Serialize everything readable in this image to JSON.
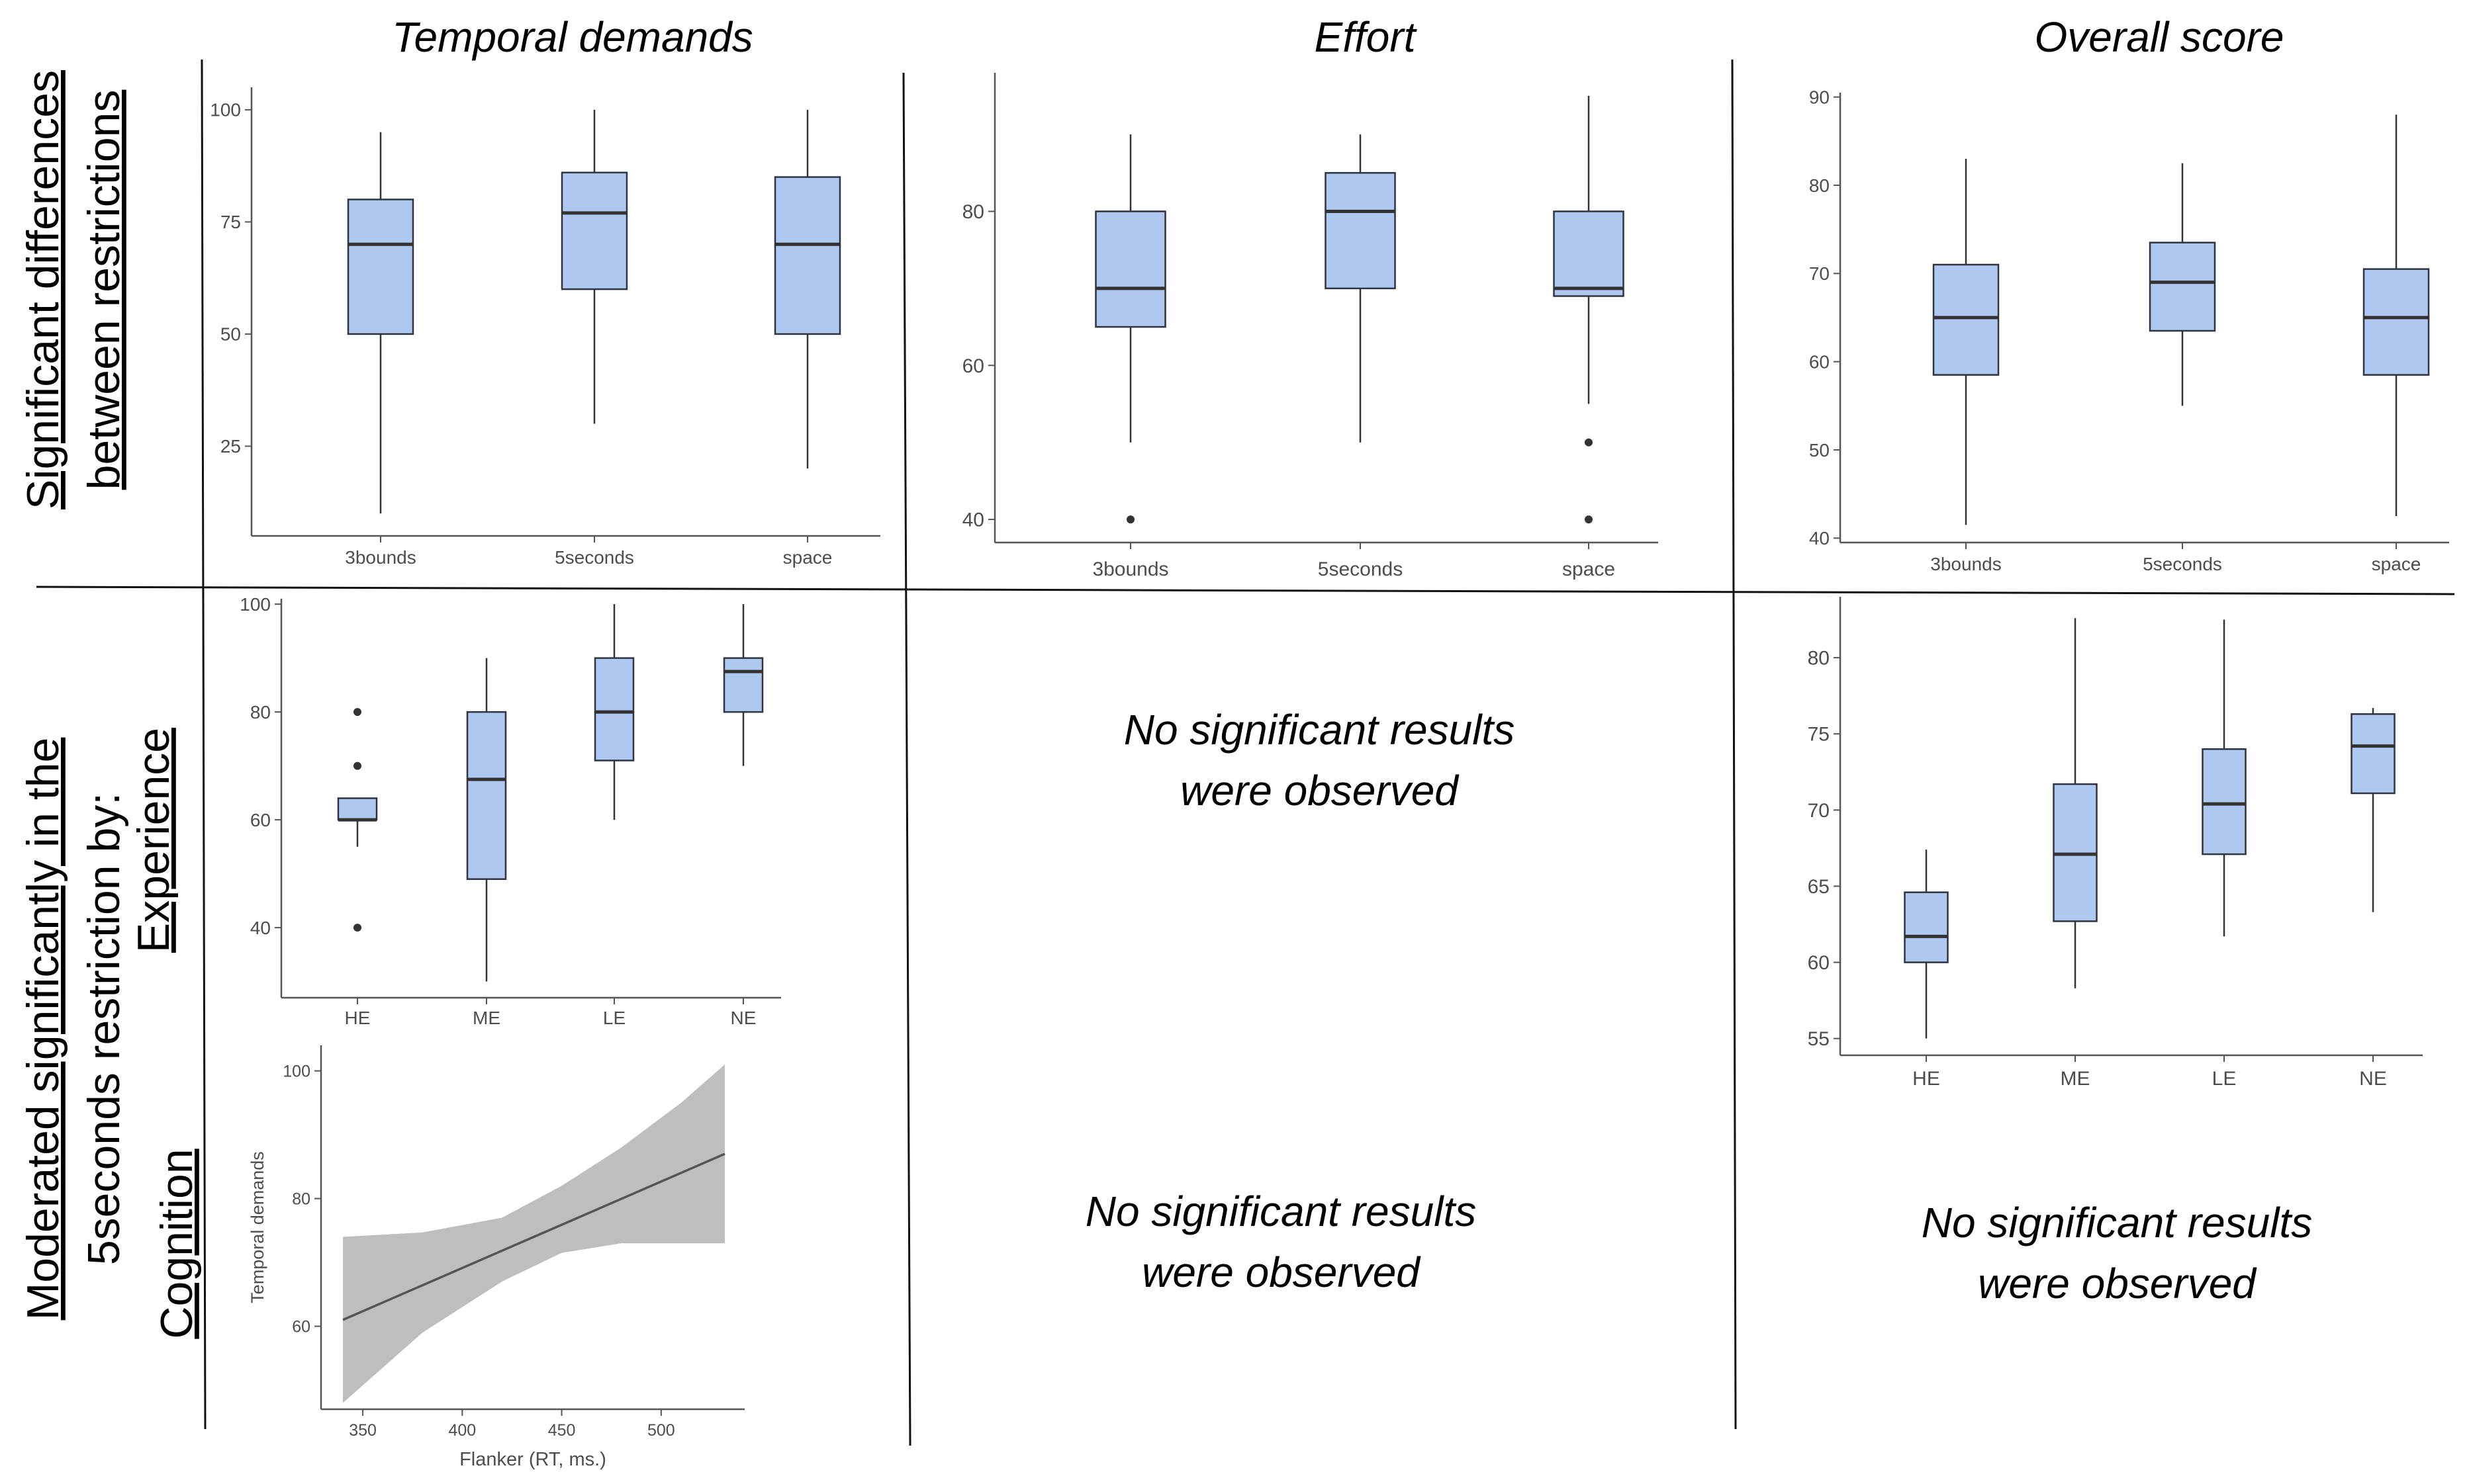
{
  "columns": {
    "temporal": "Temporal demands",
    "effort": "Effort",
    "overall": "Overall score"
  },
  "rows": {
    "top": [
      "Significant differences",
      "between restrictions"
    ],
    "bottom_main": [
      "Moderated significantly in the",
      "5seconds restriction by:"
    ],
    "experience": "Experience",
    "cognition": "Cognition"
  },
  "no_results": [
    "No significant results",
    "were observed"
  ],
  "colors": {
    "box_fill": "#aec8f0",
    "box_stroke": "#2e3440",
    "median": "#333333",
    "ribbon": "#bebebe",
    "line": "#555555",
    "axis": "#555555",
    "tick_text": "#4d4d4d",
    "divider": "#111111"
  },
  "chart_data": [
    {
      "id": "temporal_restriction",
      "type": "boxplot",
      "title": "Temporal demands",
      "categories": [
        "3bounds",
        "5seconds",
        "space"
      ],
      "boxes": [
        {
          "q1": 50,
          "median": 70,
          "q3": 80,
          "low": 10,
          "high": 95,
          "outliers": []
        },
        {
          "q1": 60,
          "median": 77,
          "q3": 86,
          "low": 30,
          "high": 100,
          "outliers": []
        },
        {
          "q1": 50,
          "median": 70,
          "q3": 85,
          "low": 20,
          "high": 100,
          "outliers": []
        }
      ],
      "yticks": [
        25,
        50,
        75,
        100
      ],
      "ylim": [
        5,
        105
      ]
    },
    {
      "id": "effort_restriction",
      "type": "boxplot",
      "title": "Effort",
      "categories": [
        "3bounds",
        "5seconds",
        "space"
      ],
      "boxes": [
        {
          "q1": 65,
          "median": 70,
          "q3": 80,
          "low": 50,
          "high": 90,
          "outliers": [
            40
          ]
        },
        {
          "q1": 70,
          "median": 80,
          "q3": 85,
          "low": 50,
          "high": 90,
          "outliers": []
        },
        {
          "q1": 69,
          "median": 70,
          "q3": 80,
          "low": 55,
          "high": 95,
          "outliers": [
            50,
            40
          ]
        }
      ],
      "yticks": [
        40,
        60,
        80
      ],
      "ylim": [
        37,
        98
      ]
    },
    {
      "id": "overall_restriction",
      "type": "boxplot",
      "title": "Overall score",
      "categories": [
        "3bounds",
        "5seconds",
        "space"
      ],
      "boxes": [
        {
          "q1": 58.5,
          "median": 65,
          "q3": 71,
          "low": 41.5,
          "high": 83,
          "outliers": []
        },
        {
          "q1": 63.5,
          "median": 69,
          "q3": 73.5,
          "low": 55,
          "high": 82.5,
          "outliers": []
        },
        {
          "q1": 58.5,
          "median": 65,
          "q3": 70.5,
          "low": 42.5,
          "high": 88,
          "outliers": []
        }
      ],
      "yticks": [
        40,
        50,
        60,
        70,
        80,
        90
      ],
      "ylim": [
        39.5,
        90.5
      ]
    },
    {
      "id": "temporal_experience",
      "type": "boxplot",
      "categories": [
        "HE",
        "ME",
        "LE",
        "NE"
      ],
      "boxes": [
        {
          "q1": 60,
          "median": 60,
          "q3": 64,
          "low": 55,
          "high": 64,
          "outliers": [
            80,
            70,
            40
          ]
        },
        {
          "q1": 49,
          "median": 67.5,
          "q3": 80,
          "low": 30,
          "high": 90,
          "outliers": []
        },
        {
          "q1": 71,
          "median": 80,
          "q3": 90,
          "low": 60,
          "high": 100,
          "outliers": []
        },
        {
          "q1": 80,
          "median": 87.5,
          "q3": 90,
          "low": 70,
          "high": 100,
          "outliers": []
        }
      ],
      "yticks": [
        40,
        60,
        80,
        100
      ],
      "ylim": [
        27,
        101
      ]
    },
    {
      "id": "overall_experience",
      "type": "boxplot",
      "categories": [
        "HE",
        "ME",
        "LE",
        "NE"
      ],
      "boxes": [
        {
          "q1": 60,
          "median": 61.7,
          "q3": 64.6,
          "low": 55,
          "high": 67.4,
          "outliers": []
        },
        {
          "q1": 62.7,
          "median": 67.1,
          "q3": 71.7,
          "low": 58.3,
          "high": 82.6,
          "outliers": []
        },
        {
          "q1": 67.1,
          "median": 70.4,
          "q3": 74,
          "low": 61.7,
          "high": 82.5,
          "outliers": []
        },
        {
          "q1": 71.1,
          "median": 74.2,
          "q3": 76.3,
          "low": 63.3,
          "high": 76.7,
          "outliers": []
        }
      ],
      "yticks": [
        55,
        60,
        65,
        70,
        75,
        80
      ],
      "ylim": [
        53.9,
        84
      ]
    },
    {
      "id": "temporal_cognition",
      "type": "line",
      "xlabel": "Flanker (RT, ms.)",
      "ylabel": "Temporal demands",
      "xticks": [
        350,
        400,
        450,
        500
      ],
      "yticks": [
        60,
        80,
        100
      ],
      "xlim": [
        329,
        542
      ],
      "ylim": [
        47,
        104
      ],
      "x": [
        340,
        532
      ],
      "y": [
        61,
        87
      ],
      "ribbon": [
        {
          "x": 340,
          "lo": 48,
          "hi": 74
        },
        {
          "x": 380,
          "lo": 59,
          "hi": 74.7
        },
        {
          "x": 420,
          "lo": 67,
          "hi": 77
        },
        {
          "x": 450,
          "lo": 71.5,
          "hi": 82
        },
        {
          "x": 480,
          "lo": 73,
          "hi": 88
        },
        {
          "x": 510,
          "lo": 73,
          "hi": 95
        },
        {
          "x": 532,
          "lo": 73,
          "hi": 101
        }
      ],
      "grid": false
    }
  ]
}
